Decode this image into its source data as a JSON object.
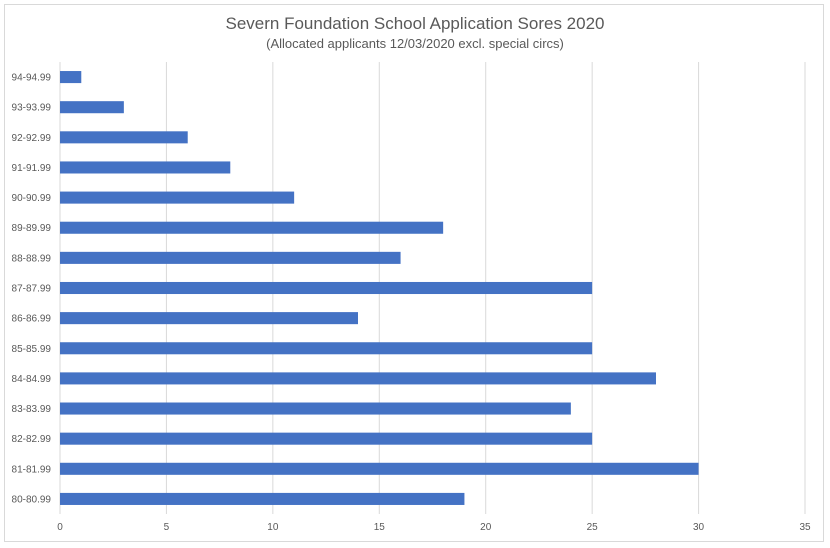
{
  "chart_data": {
    "type": "bar",
    "orientation": "horizontal",
    "title": "Severn Foundation School Application Sores 2020",
    "subtitle": "(Allocated applicants 12/03/2020 excl. special circs)",
    "categories": [
      "94-94.99",
      "93-93.99",
      "92-92.99",
      "91-91.99",
      "90-90.99",
      "89-89.99",
      "88-88.99",
      "87-87.99",
      "86-86.99",
      "85-85.99",
      "84-84.99",
      "83-83.99",
      "82-82.99",
      "81-81.99",
      "80-80.99"
    ],
    "values": [
      1,
      3,
      6,
      8,
      11,
      18,
      16,
      25,
      14,
      25,
      28,
      24,
      25,
      30,
      19
    ],
    "xlim": [
      0,
      35
    ],
    "xticks": [
      0,
      5,
      10,
      15,
      20,
      25,
      30,
      35
    ],
    "grid": true,
    "bar_color": "#4472c4"
  }
}
